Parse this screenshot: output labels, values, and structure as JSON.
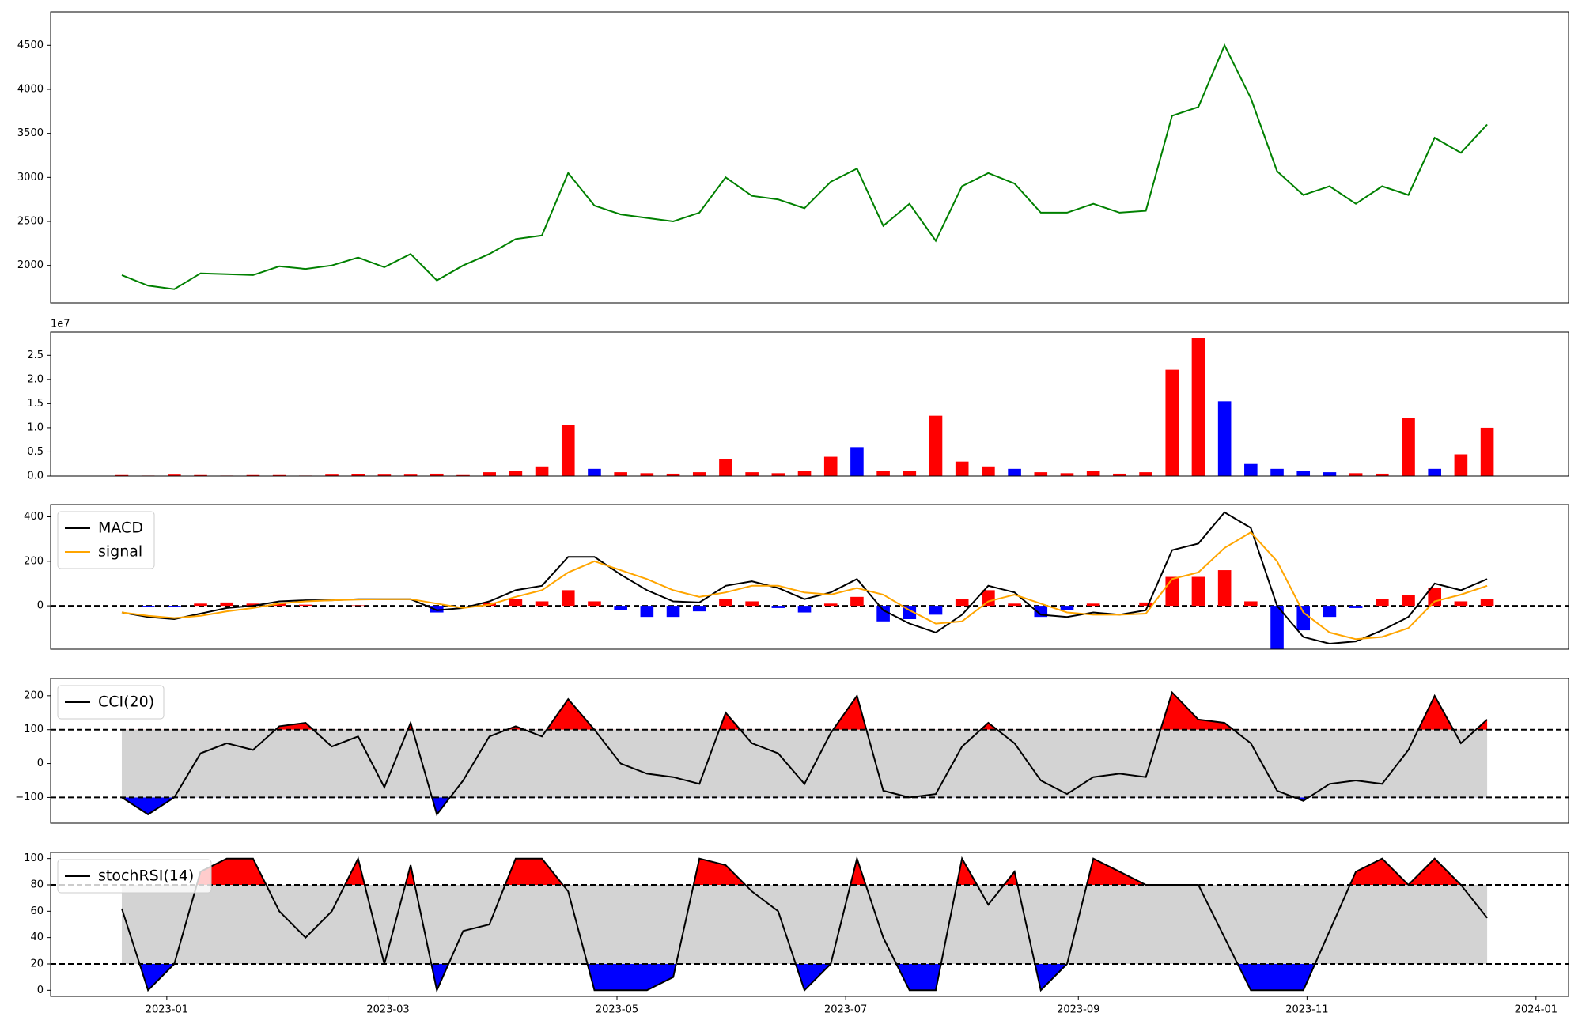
{
  "chart_data": [
    {
      "type": "line",
      "xlim": [
        -2.71,
        55.1
      ],
      "ylim": [
        1575,
        4880
      ],
      "yticks": [
        2000,
        2500,
        3000,
        3500,
        4000,
        4500
      ],
      "series": [
        {
          "color": "green",
          "values": [
            1890,
            1770,
            1730,
            1910,
            1900,
            1890,
            1990,
            1960,
            2000,
            2090,
            1980,
            2130,
            1830,
            2000,
            2130,
            2300,
            2340,
            3050,
            2680,
            2580,
            2540,
            2500,
            2600,
            3000,
            2790,
            2750,
            2650,
            2950,
            3100,
            2450,
            2700,
            2280,
            2900,
            3050,
            2930,
            2600,
            2600,
            2700,
            2600,
            2620,
            3700,
            3800,
            4500,
            3900,
            3070,
            2800,
            2900,
            2700,
            2900,
            2800,
            3450,
            3280,
            3600
          ]
        }
      ]
    },
    {
      "type": "bar",
      "xlim": [
        -2.71,
        55.1
      ],
      "ylim": [
        0,
        2.98
      ],
      "offset_label": "1e7",
      "yticks": [
        {
          "value": 0,
          "label": "0.0"
        },
        0.5,
        {
          "value": 1,
          "label": "1.0"
        },
        1.5,
        {
          "value": 2,
          "label": "2.0"
        },
        2.5
      ],
      "series": [
        {
          "values": [
            0.02,
            0.01,
            0.03,
            0.02,
            0.01,
            0.02,
            0.02,
            0.01,
            0.03,
            0.04,
            0.03,
            0.03,
            0.05,
            0.02,
            0.08,
            0.1,
            0.2,
            1.05,
            0.15,
            0.08,
            0.06,
            0.05,
            0.08,
            0.35,
            0.08,
            0.06,
            0.1,
            0.4,
            0.6,
            0.1,
            0.1,
            1.25,
            0.3,
            0.2,
            0.15,
            0.08,
            0.06,
            0.1,
            0.05,
            0.08,
            2.2,
            2.85,
            1.55,
            0.25,
            0.15,
            0.1,
            0.08,
            0.06,
            0.05,
            1.2,
            0.15,
            0.45,
            1.0
          ],
          "colors": [
            "red",
            "red",
            "red",
            "red",
            "red",
            "red",
            "red",
            "red",
            "red",
            "red",
            "red",
            "red",
            "red",
            "red",
            "red",
            "red",
            "red",
            "red",
            "blue",
            "red",
            "red",
            "red",
            "red",
            "red",
            "red",
            "red",
            "red",
            "red",
            "blue",
            "red",
            "red",
            "red",
            "red",
            "red",
            "blue",
            "red",
            "red",
            "red",
            "red",
            "red",
            "red",
            "red",
            "blue",
            "blue",
            "blue",
            "blue",
            "blue",
            "red",
            "red",
            "red",
            "blue",
            "red",
            "red"
          ]
        }
      ]
    },
    {
      "type": "line",
      "xlim": [
        -2.71,
        55.1
      ],
      "ylim": [
        -195,
        455
      ],
      "yticks": [
        0,
        200,
        400
      ],
      "hlines": [
        0
      ],
      "legend": "upper left",
      "series": [
        {
          "name": "MACD",
          "color": "black",
          "values": [
            -30,
            -50,
            -60,
            -35,
            -10,
            0,
            20,
            25,
            25,
            30,
            30,
            30,
            -20,
            -10,
            20,
            70,
            90,
            220,
            220,
            140,
            70,
            20,
            15,
            90,
            110,
            80,
            30,
            60,
            120,
            -20,
            -80,
            -120,
            -40,
            90,
            60,
            -40,
            -50,
            -30,
            -40,
            -20,
            250,
            280,
            420,
            350,
            0,
            -140,
            -170,
            -160,
            -110,
            -50,
            100,
            70,
            120
          ]
        },
        {
          "name": "signal",
          "color": "orange",
          "values": [
            -30,
            -45,
            -55,
            -45,
            -25,
            -10,
            10,
            20,
            25,
            28,
            30,
            30,
            10,
            -10,
            5,
            40,
            70,
            150,
            200,
            160,
            120,
            70,
            40,
            60,
            90,
            90,
            60,
            50,
            80,
            50,
            -20,
            -80,
            -70,
            20,
            50,
            10,
            -30,
            -40,
            -40,
            -35,
            120,
            150,
            260,
            330,
            200,
            -30,
            -120,
            -150,
            -140,
            -100,
            20,
            50,
            90
          ]
        }
      ],
      "histogram": {
        "up_color": "red",
        "down_color": "blue",
        "values": [
          0,
          -5,
          -5,
          10,
          15,
          10,
          10,
          5,
          0,
          2,
          0,
          0,
          -30,
          0,
          15,
          30,
          20,
          70,
          20,
          -20,
          -50,
          -50,
          -25,
          30,
          20,
          -10,
          -30,
          10,
          40,
          -70,
          -60,
          -40,
          30,
          70,
          10,
          -50,
          -20,
          10,
          0,
          15,
          130,
          130,
          160,
          20,
          -200,
          -110,
          -50,
          -10,
          30,
          50,
          80,
          20,
          30
        ]
      }
    },
    {
      "type": "line",
      "xlim": [
        -2.71,
        55.1
      ],
      "ylim": [
        -176,
        251
      ],
      "yticks": [
        {
          "value": -100,
          "label": "−100"
        },
        0,
        100,
        200
      ],
      "legend": "upper left",
      "bands": [
        -100,
        100
      ],
      "band_color": "#d3d3d3",
      "above_color": "red",
      "below_color": "blue",
      "series": [
        {
          "name": "CCI(20)",
          "color": "black",
          "values": [
            -100,
            -150,
            -100,
            30,
            60,
            40,
            110,
            120,
            50,
            80,
            -70,
            120,
            -150,
            -50,
            80,
            110,
            80,
            190,
            100,
            0,
            -30,
            -40,
            -60,
            150,
            60,
            30,
            -60,
            90,
            200,
            -80,
            -100,
            -90,
            50,
            120,
            60,
            -50,
            -90,
            -40,
            -30,
            -40,
            210,
            130,
            120,
            60,
            -80,
            -110,
            -60,
            -50,
            -60,
            40,
            200,
            60,
            130
          ]
        }
      ]
    },
    {
      "type": "line",
      "xlim": [
        -2.71,
        55.1
      ],
      "ylim": [
        -4.6,
        104.6
      ],
      "yticks": [
        0,
        20,
        40,
        60,
        80,
        100
      ],
      "legend": "upper left",
      "bands": [
        20,
        80
      ],
      "band_color": "#d3d3d3",
      "above_color": "red",
      "below_color": "blue",
      "xticks": [
        {
          "value": 1.714,
          "label": "2023-01"
        },
        {
          "value": 10.14,
          "label": "2023-03"
        },
        {
          "value": 18.86,
          "label": "2023-05"
        },
        {
          "value": 27.57,
          "label": "2023-07"
        },
        {
          "value": 36.43,
          "label": "2023-09"
        },
        {
          "value": 45.14,
          "label": "2023-11"
        },
        {
          "value": 53.86,
          "label": "2024-01"
        }
      ],
      "series": [
        {
          "name": "stochRSI(14)",
          "color": "black",
          "values": [
            62,
            0,
            20,
            90,
            100,
            100,
            60,
            40,
            60,
            100,
            20,
            95,
            0,
            45,
            50,
            100,
            100,
            75,
            0,
            0,
            0,
            10,
            100,
            95,
            75,
            60,
            0,
            20,
            100,
            40,
            0,
            0,
            100,
            65,
            90,
            0,
            20,
            100,
            90,
            80,
            80,
            80,
            40,
            0,
            0,
            0,
            45,
            90,
            100,
            80,
            100,
            80,
            55
          ]
        }
      ]
    }
  ]
}
